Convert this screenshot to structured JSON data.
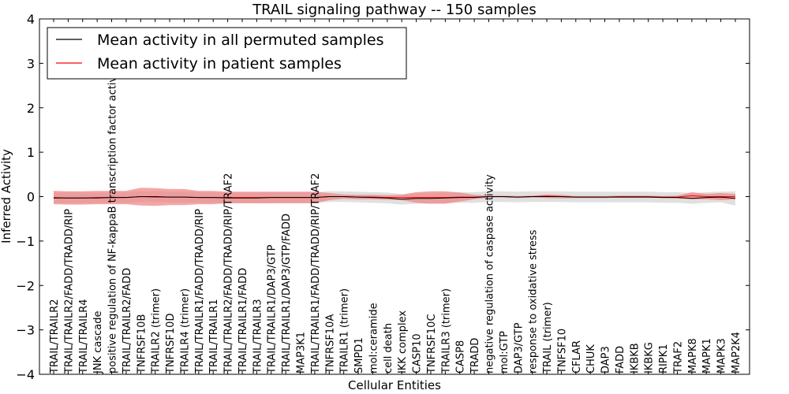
{
  "chart_data": {
    "type": "line",
    "title": "TRAIL signaling pathway -- 150 samples",
    "xlabel": "Cellular Entities",
    "ylabel": "Inferred Activity",
    "ylim": [
      -4,
      4
    ],
    "yticks": [
      -4,
      -3,
      -2,
      -1,
      0,
      1,
      2,
      3,
      4
    ],
    "ytick_labels": [
      "−4",
      "−3",
      "−2",
      "−1",
      "0",
      "1",
      "2",
      "3",
      "4"
    ],
    "legend_position": "top-left",
    "categories": [
      "TRAIL/TRAILR2",
      "TRAIL/TRAILR2/FADD/TRADD/RIP",
      "TRAIL/TRAILR4",
      "JNK cascade",
      "positive regulation of NF-kappaB transcription factor activity",
      "TRAIL/TRAILR2/FADD",
      "TNFRSF10B",
      "TRAILR2 (trimer)",
      "TNFRSF10D",
      "TRAILR4 (trimer)",
      "TRAIL/TRAILR1/FADD/TRADD/RIP",
      "TRAIL/TRAILR1",
      "TRAIL/TRAILR2/FADD/TRADD/RIP/TRAF2",
      "TRAIL/TRAILR1/FADD",
      "TRAIL/TRAILR3",
      "TRAIL/TRAILR1/DAP3/GTP",
      "TRAIL/TRAILR1/DAP3/GTP/FADD",
      "MAP3K1",
      "TRAIL/TRAILR1/FADD/TRADD/RIP/TRAF2",
      "TNFRSF10A",
      "TRAILR1 (trimer)",
      "SMPD1",
      "mol:ceramide",
      "cell death",
      "IKK complex",
      "CASP10",
      "TNFRSF10C",
      "TRAILR3 (trimer)",
      "CASP8",
      "TRADD",
      "negative regulation of caspase activity",
      "mol:GTP",
      "DAP3/GTP",
      "response to oxidative stress",
      "TRAIL (trimer)",
      "TNFSF10",
      "CFLAR",
      "CHUK",
      "DAP3",
      "FADD",
      "IKBKB",
      "IKBKG",
      "RIPK1",
      "TRAF2",
      "MAPK8",
      "MAPK1",
      "MAPK3",
      "MAP2K4"
    ],
    "series": [
      {
        "name": "Mean activity in all permuted samples",
        "color": "#000000",
        "band_color": "#cccccc",
        "values": [
          -0.03,
          -0.03,
          -0.03,
          -0.03,
          -0.02,
          -0.02,
          0,
          0,
          -0.01,
          -0.01,
          -0.02,
          -0.02,
          -0.03,
          -0.03,
          -0.03,
          -0.02,
          -0.02,
          -0.02,
          -0.02,
          0,
          0,
          -0.01,
          -0.02,
          -0.03,
          -0.06,
          -0.04,
          -0.04,
          -0.03,
          -0.02,
          -0.02,
          0,
          0,
          -0.01,
          0,
          0,
          0,
          -0.01,
          -0.01,
          -0.01,
          -0.01,
          -0.01,
          -0.01,
          -0.02,
          -0.02,
          -0.04,
          -0.02,
          -0.01,
          -0.04
        ],
        "band": [
          0.12,
          0.12,
          0.12,
          0.12,
          0.12,
          0.12,
          0.12,
          0.12,
          0.12,
          0.12,
          0.12,
          0.12,
          0.12,
          0.12,
          0.12,
          0.12,
          0.12,
          0.12,
          0.12,
          0.12,
          0.12,
          0.12,
          0.12,
          0.12,
          0.12,
          0.12,
          0.12,
          0.12,
          0.12,
          0.12,
          0.12,
          0.12,
          0.12,
          0.12,
          0.12,
          0.12,
          0.12,
          0.12,
          0.12,
          0.12,
          0.12,
          0.12,
          0.12,
          0.12,
          0.12,
          0.12,
          0.12,
          0.16
        ]
      },
      {
        "name": "Mean activity in patient samples",
        "color": "#ff0000",
        "band_color": "#f08080",
        "values": [
          -0.02,
          -0.03,
          -0.03,
          -0.02,
          -0.02,
          -0.02,
          0,
          -0.01,
          -0.01,
          -0.01,
          -0.02,
          -0.02,
          -0.02,
          -0.02,
          -0.02,
          -0.02,
          -0.02,
          -0.02,
          -0.02,
          0,
          0,
          -0.01,
          -0.01,
          -0.02,
          -0.02,
          -0.02,
          -0.02,
          -0.02,
          -0.01,
          -0.01,
          0,
          0,
          -0.01,
          0,
          0.01,
          0,
          -0.01,
          -0.01,
          -0.01,
          0,
          0,
          0,
          -0.01,
          -0.01,
          0.02,
          0,
          0,
          0
        ],
        "band": [
          0.15,
          0.15,
          0.15,
          0.15,
          0.15,
          0.15,
          0.2,
          0.2,
          0.18,
          0.18,
          0.15,
          0.15,
          0.13,
          0.13,
          0.13,
          0.13,
          0.13,
          0.13,
          0.13,
          0.08,
          0.05,
          0.05,
          0.05,
          0.05,
          0.06,
          0.12,
          0.14,
          0.14,
          0.1,
          0.05,
          0.02,
          0.02,
          0.02,
          0.02,
          0.04,
          0.04,
          0.02,
          0.02,
          0.02,
          0.02,
          0.02,
          0.02,
          0.02,
          0.03,
          0.08,
          0.06,
          0.08,
          0.06
        ]
      }
    ]
  }
}
